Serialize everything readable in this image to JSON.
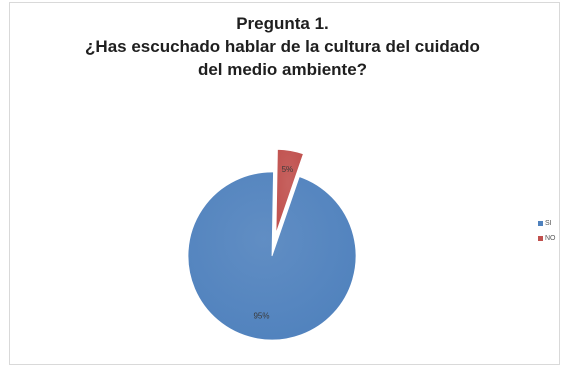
{
  "chart_data": {
    "type": "pie",
    "title_lines": [
      "Pregunta 1.",
      "¿Has escuchado hablar de la cultura del cuidado",
      "del medio ambiente?"
    ],
    "categories": [
      "SI",
      "NO"
    ],
    "values": [
      95,
      5
    ],
    "data_labels": [
      "95%",
      "5%"
    ],
    "colors": [
      "#4f81bd",
      "#c0504d"
    ],
    "exploded_category": "NO",
    "legend_position": "right"
  }
}
